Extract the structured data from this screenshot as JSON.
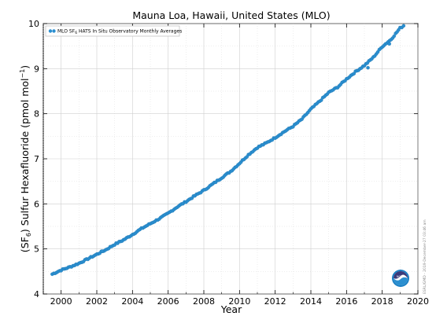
{
  "chart_data": {
    "type": "scatter",
    "title": "Mauna Loa, Hawaii, United States (MLO)",
    "xlabel": "Year",
    "ylabel_main": "(SF",
    "ylabel_sub": "6",
    "ylabel_rest": ") Sulfur Hexafluoride (pmol mol",
    "ylabel_sup": "−1",
    "ylabel_end": ")",
    "xlim": [
      1999,
      2020
    ],
    "ylim": [
      4,
      10
    ],
    "xticks": [
      "2000",
      "2002",
      "2004",
      "2006",
      "2008",
      "2010",
      "2012",
      "2014",
      "2016",
      "2018",
      "2020"
    ],
    "yticks": [
      "4",
      "5",
      "6",
      "7",
      "8",
      "9",
      "10"
    ],
    "grid": true,
    "legend_position": "top-left",
    "series": [
      {
        "name_main": "MLO SF",
        "name_sub": "6",
        "name_rest": " HATS In Situ Observatory Monthly Averages",
        "color": "#2b8fd0",
        "points": [
          [
            1999.5,
            4.44
          ],
          [
            2000.0,
            4.53
          ],
          [
            2000.5,
            4.6
          ],
          [
            2001.0,
            4.68
          ],
          [
            2001.5,
            4.78
          ],
          [
            2002.0,
            4.88
          ],
          [
            2002.5,
            4.98
          ],
          [
            2003.0,
            5.1
          ],
          [
            2003.5,
            5.2
          ],
          [
            2004.0,
            5.32
          ],
          [
            2004.5,
            5.45
          ],
          [
            2005.0,
            5.56
          ],
          [
            2005.5,
            5.67
          ],
          [
            2006.0,
            5.79
          ],
          [
            2006.5,
            5.93
          ],
          [
            2007.0,
            6.05
          ],
          [
            2007.5,
            6.18
          ],
          [
            2008.0,
            6.3
          ],
          [
            2008.5,
            6.44
          ],
          [
            2009.0,
            6.58
          ],
          [
            2009.5,
            6.72
          ],
          [
            2010.0,
            6.9
          ],
          [
            2010.5,
            7.09
          ],
          [
            2011.0,
            7.25
          ],
          [
            2011.5,
            7.35
          ],
          [
            2012.0,
            7.47
          ],
          [
            2012.5,
            7.6
          ],
          [
            2013.0,
            7.72
          ],
          [
            2013.5,
            7.88
          ],
          [
            2014.0,
            8.1
          ],
          [
            2014.5,
            8.28
          ],
          [
            2015.0,
            8.47
          ],
          [
            2015.5,
            8.59
          ],
          [
            2016.0,
            8.77
          ],
          [
            2016.5,
            8.93
          ],
          [
            2017.0,
            9.07
          ],
          [
            2017.5,
            9.25
          ],
          [
            2018.0,
            9.49
          ],
          [
            2018.5,
            9.65
          ],
          [
            2019.0,
            9.9
          ],
          [
            2019.2,
            9.95
          ]
        ]
      }
    ],
    "outliers": [
      [
        2002.3,
        4.95
      ],
      [
        2018.4,
        9.55
      ],
      [
        2017.2,
        9.02
      ]
    ]
  },
  "credit_text": "ESRL/GMD - 2019-December-27 03:46 am",
  "colors": {
    "marker": "#2b8fd0",
    "marker_edge": "#1a6fa8",
    "grid": "#cfcfcf",
    "axis": "#000000"
  },
  "logo_name": "noaa-logo",
  "logo_text": "NOAA"
}
